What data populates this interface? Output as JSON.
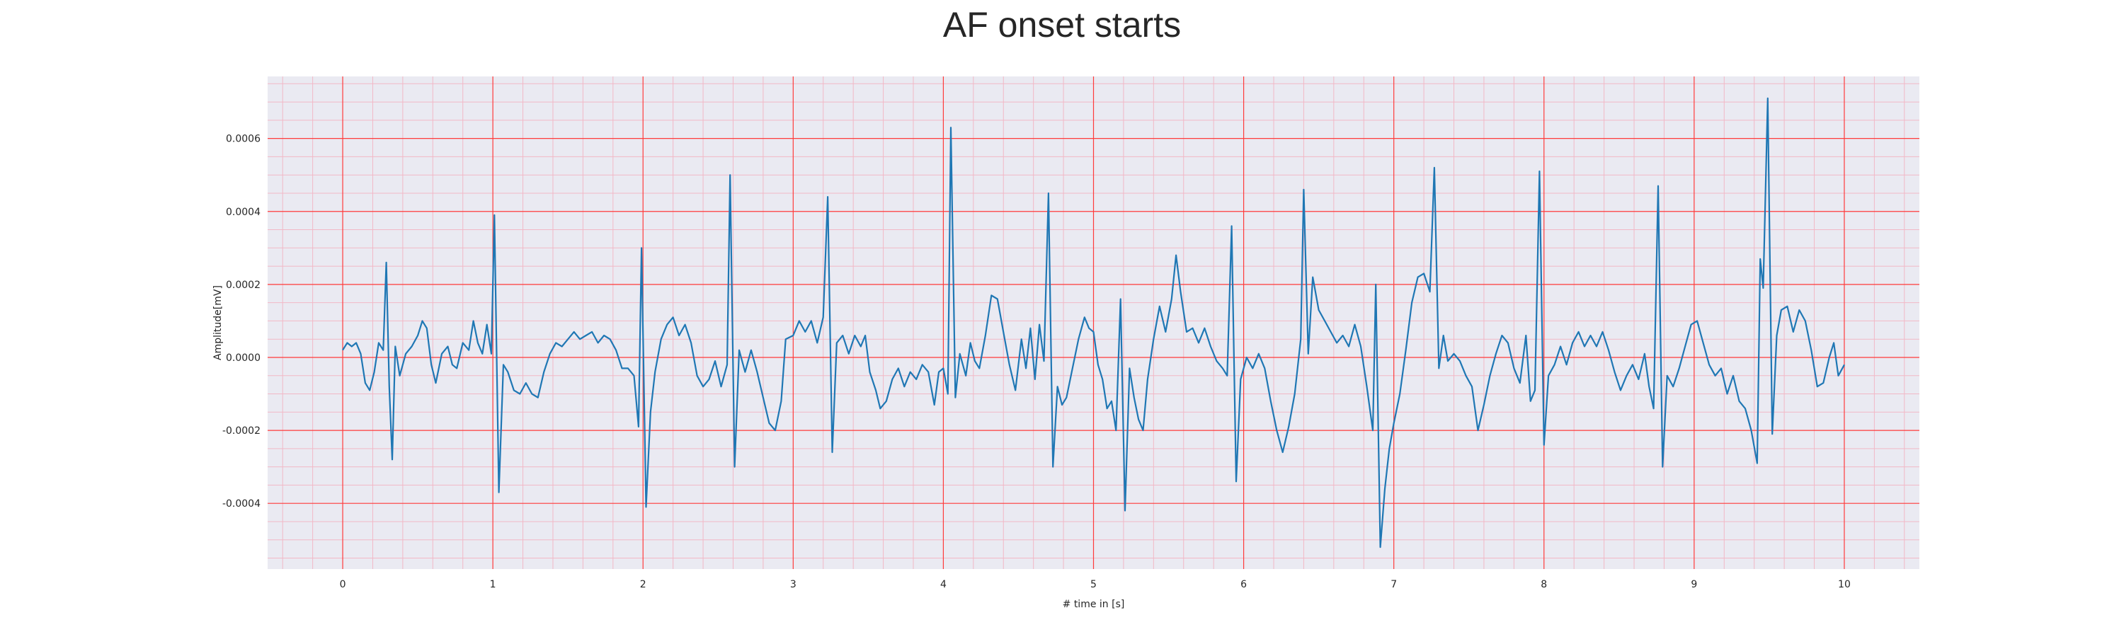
{
  "chart_data": {
    "type": "line",
    "title": "AF onset starts",
    "xlabel": "# time in [s]",
    "ylabel": "Amplitude[mV]",
    "xlim": [
      -0.5,
      10.5
    ],
    "ylim": [
      -0.00058,
      0.00077
    ],
    "x_ticks": [
      0,
      1,
      2,
      3,
      4,
      5,
      6,
      7,
      8,
      9,
      10
    ],
    "y_ticks": [
      -0.0004,
      -0.0002,
      0.0,
      0.0002,
      0.0004,
      0.0006
    ],
    "y_tick_labels": [
      "-0.0004",
      "-0.0002",
      "0.0000",
      "0.0002",
      "0.0004",
      "0.0006"
    ],
    "grid": "major and minor, red",
    "colors": {
      "line": "#1f77b4",
      "background": "#eaeaf2",
      "grid_major": "#ff3b3b",
      "grid_minor": "#f2b8c6"
    },
    "series": [
      {
        "points": [
          [
            0.0,
            2e-05
          ],
          [
            0.03,
            4e-05
          ],
          [
            0.06,
            3e-05
          ],
          [
            0.09,
            4e-05
          ],
          [
            0.12,
            1e-05
          ],
          [
            0.15,
            -7e-05
          ],
          [
            0.18,
            -9e-05
          ],
          [
            0.21,
            -4e-05
          ],
          [
            0.24,
            4e-05
          ],
          [
            0.27,
            2e-05
          ],
          [
            0.29,
            0.00026
          ],
          [
            0.31,
            -8e-05
          ],
          [
            0.33,
            -0.00028
          ],
          [
            0.35,
            3e-05
          ],
          [
            0.38,
            -5e-05
          ],
          [
            0.42,
            1e-05
          ],
          [
            0.46,
            3e-05
          ],
          [
            0.5,
            6e-05
          ],
          [
            0.53,
            0.0001
          ],
          [
            0.56,
            8e-05
          ],
          [
            0.59,
            -2e-05
          ],
          [
            0.62,
            -7e-05
          ],
          [
            0.66,
            1e-05
          ],
          [
            0.7,
            3e-05
          ],
          [
            0.73,
            -2e-05
          ],
          [
            0.76,
            -3e-05
          ],
          [
            0.8,
            4e-05
          ],
          [
            0.84,
            2e-05
          ],
          [
            0.87,
            0.0001
          ],
          [
            0.9,
            4e-05
          ],
          [
            0.93,
            1e-05
          ],
          [
            0.96,
            9e-05
          ],
          [
            0.99,
            1e-05
          ],
          [
            1.01,
            0.00039
          ],
          [
            1.04,
            -0.00037
          ],
          [
            1.07,
            -2e-05
          ],
          [
            1.1,
            -4e-05
          ],
          [
            1.14,
            -9e-05
          ],
          [
            1.18,
            -0.0001
          ],
          [
            1.22,
            -7e-05
          ],
          [
            1.26,
            -0.0001
          ],
          [
            1.3,
            -0.00011
          ],
          [
            1.34,
            -4e-05
          ],
          [
            1.38,
            1e-05
          ],
          [
            1.42,
            4e-05
          ],
          [
            1.46,
            3e-05
          ],
          [
            1.5,
            5e-05
          ],
          [
            1.54,
            7e-05
          ],
          [
            1.58,
            5e-05
          ],
          [
            1.62,
            6e-05
          ],
          [
            1.66,
            7e-05
          ],
          [
            1.7,
            4e-05
          ],
          [
            1.74,
            6e-05
          ],
          [
            1.78,
            5e-05
          ],
          [
            1.82,
            2e-05
          ],
          [
            1.86,
            -3e-05
          ],
          [
            1.9,
            -3e-05
          ],
          [
            1.94,
            -5e-05
          ],
          [
            1.97,
            -0.00019
          ],
          [
            1.99,
            0.0003
          ],
          [
            2.02,
            -0.00041
          ],
          [
            2.05,
            -0.00015
          ],
          [
            2.08,
            -4e-05
          ],
          [
            2.12,
            5e-05
          ],
          [
            2.16,
            9e-05
          ],
          [
            2.2,
            0.00011
          ],
          [
            2.24,
            6e-05
          ],
          [
            2.28,
            9e-05
          ],
          [
            2.32,
            4e-05
          ],
          [
            2.36,
            -5e-05
          ],
          [
            2.4,
            -8e-05
          ],
          [
            2.44,
            -6e-05
          ],
          [
            2.48,
            -1e-05
          ],
          [
            2.52,
            -8e-05
          ],
          [
            2.56,
            -2e-05
          ],
          [
            2.58,
            0.0005
          ],
          [
            2.61,
            -0.0003
          ],
          [
            2.64,
            2e-05
          ],
          [
            2.68,
            -4e-05
          ],
          [
            2.72,
            2e-05
          ],
          [
            2.76,
            -4e-05
          ],
          [
            2.8,
            -0.00011
          ],
          [
            2.84,
            -0.00018
          ],
          [
            2.88,
            -0.0002
          ],
          [
            2.92,
            -0.00012
          ],
          [
            2.95,
            5e-05
          ],
          [
            3.0,
            6e-05
          ],
          [
            3.04,
            0.0001
          ],
          [
            3.08,
            7e-05
          ],
          [
            3.12,
            0.0001
          ],
          [
            3.16,
            4e-05
          ],
          [
            3.2,
            0.00011
          ],
          [
            3.23,
            0.00044
          ],
          [
            3.26,
            -0.00026
          ],
          [
            3.29,
            4e-05
          ],
          [
            3.33,
            6e-05
          ],
          [
            3.37,
            1e-05
          ],
          [
            3.41,
            6e-05
          ],
          [
            3.45,
            3e-05
          ],
          [
            3.48,
            6e-05
          ],
          [
            3.51,
            -4e-05
          ],
          [
            3.55,
            -9e-05
          ],
          [
            3.58,
            -0.00014
          ],
          [
            3.62,
            -0.00012
          ],
          [
            3.66,
            -6e-05
          ],
          [
            3.7,
            -3e-05
          ],
          [
            3.74,
            -8e-05
          ],
          [
            3.78,
            -4e-05
          ],
          [
            3.82,
            -6e-05
          ],
          [
            3.86,
            -2e-05
          ],
          [
            3.9,
            -4e-05
          ],
          [
            3.94,
            -0.00013
          ],
          [
            3.97,
            -4e-05
          ],
          [
            4.0,
            -3e-05
          ],
          [
            4.03,
            -0.0001
          ],
          [
            4.05,
            0.00063
          ],
          [
            4.08,
            -0.00011
          ],
          [
            4.11,
            1e-05
          ],
          [
            4.15,
            -5e-05
          ],
          [
            4.18,
            4e-05
          ],
          [
            4.21,
            -1e-05
          ],
          [
            4.24,
            -3e-05
          ],
          [
            4.28,
            6e-05
          ],
          [
            4.32,
            0.00017
          ],
          [
            4.36,
            0.00016
          ],
          [
            4.4,
            7e-05
          ],
          [
            4.44,
            -2e-05
          ],
          [
            4.48,
            -9e-05
          ],
          [
            4.52,
            5e-05
          ],
          [
            4.55,
            -3e-05
          ],
          [
            4.58,
            8e-05
          ],
          [
            4.61,
            -6e-05
          ],
          [
            4.64,
            9e-05
          ],
          [
            4.67,
            -1e-05
          ],
          [
            4.7,
            0.00045
          ],
          [
            4.73,
            -0.0003
          ],
          [
            4.76,
            -8e-05
          ],
          [
            4.79,
            -0.00013
          ],
          [
            4.82,
            -0.00011
          ],
          [
            4.86,
            -3e-05
          ],
          [
            4.9,
            5e-05
          ],
          [
            4.94,
            0.00011
          ],
          [
            4.97,
            8e-05
          ],
          [
            5.0,
            7e-05
          ],
          [
            5.03,
            -2e-05
          ],
          [
            5.06,
            -6e-05
          ],
          [
            5.09,
            -0.00014
          ],
          [
            5.12,
            -0.00012
          ],
          [
            5.15,
            -0.0002
          ],
          [
            5.18,
            0.00016
          ],
          [
            5.21,
            -0.00042
          ],
          [
            5.24,
            -3e-05
          ],
          [
            5.27,
            -0.00011
          ],
          [
            5.3,
            -0.00017
          ],
          [
            5.33,
            -0.0002
          ],
          [
            5.36,
            -6e-05
          ],
          [
            5.4,
            5e-05
          ],
          [
            5.44,
            0.00014
          ],
          [
            5.48,
            7e-05
          ],
          [
            5.52,
            0.00016
          ],
          [
            5.55,
            0.00028
          ],
          [
            5.58,
            0.00018
          ],
          [
            5.62,
            7e-05
          ],
          [
            5.66,
            8e-05
          ],
          [
            5.7,
            4e-05
          ],
          [
            5.74,
            8e-05
          ],
          [
            5.78,
            3e-05
          ],
          [
            5.82,
            -1e-05
          ],
          [
            5.86,
            -3e-05
          ],
          [
            5.89,
            -5e-05
          ],
          [
            5.92,
            0.00036
          ],
          [
            5.95,
            -0.00034
          ],
          [
            5.98,
            -6e-05
          ],
          [
            6.02,
            0.0
          ],
          [
            6.06,
            -3e-05
          ],
          [
            6.1,
            1e-05
          ],
          [
            6.14,
            -3e-05
          ],
          [
            6.18,
            -0.00012
          ],
          [
            6.22,
            -0.0002
          ],
          [
            6.26,
            -0.00026
          ],
          [
            6.3,
            -0.00019
          ],
          [
            6.34,
            -0.0001
          ],
          [
            6.38,
            5e-05
          ],
          [
            6.4,
            0.00046
          ],
          [
            6.43,
            1e-05
          ],
          [
            6.46,
            0.00022
          ],
          [
            6.5,
            0.00013
          ],
          [
            6.54,
            0.0001
          ],
          [
            6.58,
            7e-05
          ],
          [
            6.62,
            4e-05
          ],
          [
            6.66,
            6e-05
          ],
          [
            6.7,
            3e-05
          ],
          [
            6.74,
            9e-05
          ],
          [
            6.78,
            3e-05
          ],
          [
            6.82,
            -8e-05
          ],
          [
            6.86,
            -0.0002
          ],
          [
            6.88,
            0.0002
          ],
          [
            6.91,
            -0.00052
          ],
          [
            6.94,
            -0.00036
          ],
          [
            6.97,
            -0.00025
          ],
          [
            7.0,
            -0.00018
          ],
          [
            7.04,
            -0.0001
          ],
          [
            7.08,
            2e-05
          ],
          [
            7.12,
            0.00015
          ],
          [
            7.16,
            0.00022
          ],
          [
            7.2,
            0.00023
          ],
          [
            7.24,
            0.00018
          ],
          [
            7.27,
            0.00052
          ],
          [
            7.3,
            -3e-05
          ],
          [
            7.33,
            6e-05
          ],
          [
            7.36,
            -1e-05
          ],
          [
            7.4,
            1e-05
          ],
          [
            7.44,
            -1e-05
          ],
          [
            7.48,
            -5e-05
          ],
          [
            7.52,
            -8e-05
          ],
          [
            7.56,
            -0.0002
          ],
          [
            7.6,
            -0.00013
          ],
          [
            7.64,
            -5e-05
          ],
          [
            7.68,
            1e-05
          ],
          [
            7.72,
            6e-05
          ],
          [
            7.76,
            4e-05
          ],
          [
            7.8,
            -3e-05
          ],
          [
            7.84,
            -7e-05
          ],
          [
            7.88,
            6e-05
          ],
          [
            7.91,
            -0.00012
          ],
          [
            7.94,
            -9e-05
          ],
          [
            7.97,
            0.00051
          ],
          [
            8.0,
            -0.00024
          ],
          [
            8.03,
            -5e-05
          ],
          [
            8.07,
            -2e-05
          ],
          [
            8.11,
            3e-05
          ],
          [
            8.15,
            -2e-05
          ],
          [
            8.19,
            4e-05
          ],
          [
            8.23,
            7e-05
          ],
          [
            8.27,
            3e-05
          ],
          [
            8.31,
            6e-05
          ],
          [
            8.35,
            3e-05
          ],
          [
            8.39,
            7e-05
          ],
          [
            8.43,
            2e-05
          ],
          [
            8.47,
            -4e-05
          ],
          [
            8.51,
            -9e-05
          ],
          [
            8.55,
            -5e-05
          ],
          [
            8.59,
            -2e-05
          ],
          [
            8.63,
            -6e-05
          ],
          [
            8.67,
            1e-05
          ],
          [
            8.7,
            -8e-05
          ],
          [
            8.73,
            -0.00014
          ],
          [
            8.76,
            0.00047
          ],
          [
            8.79,
            -0.0003
          ],
          [
            8.82,
            -5e-05
          ],
          [
            8.86,
            -8e-05
          ],
          [
            8.9,
            -3e-05
          ],
          [
            8.94,
            3e-05
          ],
          [
            8.98,
            9e-05
          ],
          [
            9.02,
            0.0001
          ],
          [
            9.06,
            4e-05
          ],
          [
            9.1,
            -2e-05
          ],
          [
            9.14,
            -5e-05
          ],
          [
            9.18,
            -3e-05
          ],
          [
            9.22,
            -0.0001
          ],
          [
            9.26,
            -5e-05
          ],
          [
            9.3,
            -0.00012
          ],
          [
            9.34,
            -0.00014
          ],
          [
            9.38,
            -0.0002
          ],
          [
            9.42,
            -0.00029
          ],
          [
            9.44,
            0.00027
          ],
          [
            9.46,
            0.00019
          ],
          [
            9.49,
            0.00071
          ],
          [
            9.52,
            -0.00021
          ],
          [
            9.55,
            6e-05
          ],
          [
            9.58,
            0.00013
          ],
          [
            9.62,
            0.00014
          ],
          [
            9.66,
            7e-05
          ],
          [
            9.7,
            0.00013
          ],
          [
            9.74,
            0.0001
          ],
          [
            9.78,
            2e-05
          ],
          [
            9.82,
            -8e-05
          ],
          [
            9.86,
            -7e-05
          ],
          [
            9.9,
            0.0
          ],
          [
            9.93,
            4e-05
          ],
          [
            9.96,
            -5e-05
          ],
          [
            10.0,
            -2e-05
          ]
        ]
      }
    ]
  }
}
